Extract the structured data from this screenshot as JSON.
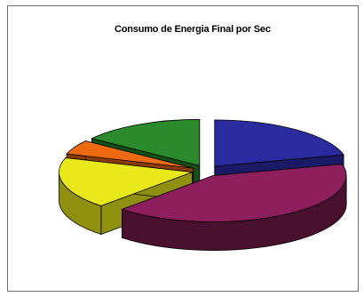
{
  "chart_data": {
    "type": "pie",
    "variant": "3d-exploded",
    "title": "Consumo de Energia Final por Sec",
    "categories": [
      "",
      "",
      "",
      "",
      ""
    ],
    "values": [
      21,
      41,
      18,
      5,
      15
    ],
    "colors": [
      "#2b2ba0",
      "#8e1f5e",
      "#e8e81a",
      "#ee6a10",
      "#2b8a2b"
    ],
    "side_colors": [
      "#1a1a66",
      "#4a1030",
      "#8f8f10",
      "#8a3a08",
      "#155015"
    ],
    "legend": "none"
  }
}
